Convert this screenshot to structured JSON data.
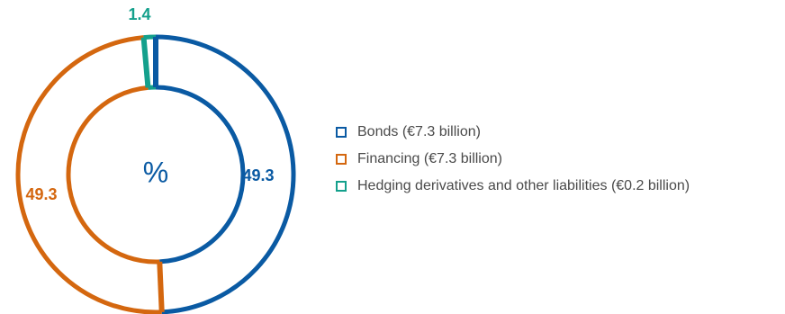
{
  "chart_data": {
    "type": "pie",
    "donut": true,
    "center_label": "%",
    "categories": [
      "Bonds (€7.3 billion)",
      "Financing (€7.3 billion)",
      "Hedging derivatives and other liabilities (€0.2 billion)"
    ],
    "values": [
      49.3,
      49.3,
      1.4
    ],
    "value_labels": [
      "49.3",
      "49.3",
      "1.4"
    ],
    "colors": [
      "#0a5aa3",
      "#d4670f",
      "#14a08c"
    ],
    "start_angle_deg": 0,
    "direction": "clockwise",
    "legend_position": "right"
  }
}
